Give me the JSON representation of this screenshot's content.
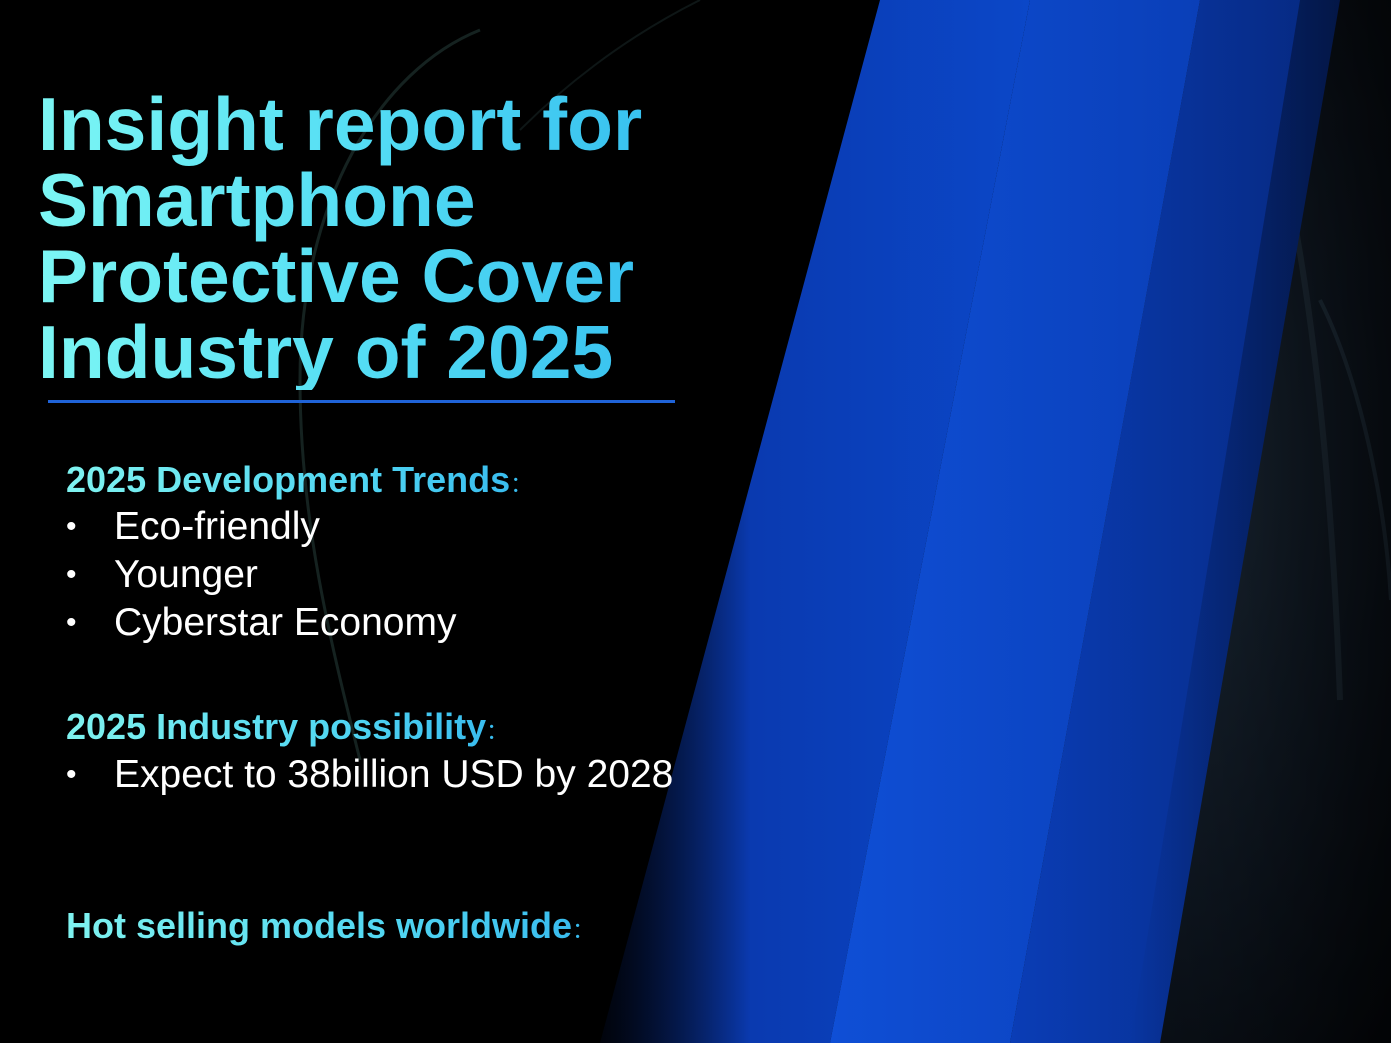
{
  "slide": {
    "title_lines": [
      "Insight report for",
      "Smartphone",
      "Protective Cover",
      "Industry of 2025"
    ],
    "sections": [
      {
        "heading": "2025 Development Trends",
        "colon": "：",
        "bullets": [
          "Eco-friendly",
          "Younger",
          "Cyberstar Economy"
        ]
      },
      {
        "heading": "2025 Industry possibility",
        "colon": "：",
        "bullets": [
          "Expect to 38billion USD by 2028"
        ]
      },
      {
        "heading": "Hot selling models worldwide",
        "colon": "：",
        "bullets": []
      }
    ],
    "bullet_glyph": "•"
  },
  "colors": {
    "background": "#000000",
    "title_gradient_start": "#7cf6f4",
    "title_gradient_end": "#2fb8ee",
    "rule": "#1f63d8",
    "bullet_text": "#ffffff",
    "stripe_main": "#0a3fb8",
    "stripe_bright": "#1452d6"
  },
  "decor_icons": [
    "diagonal-blue-stripe",
    "curved-phone-edge"
  ]
}
